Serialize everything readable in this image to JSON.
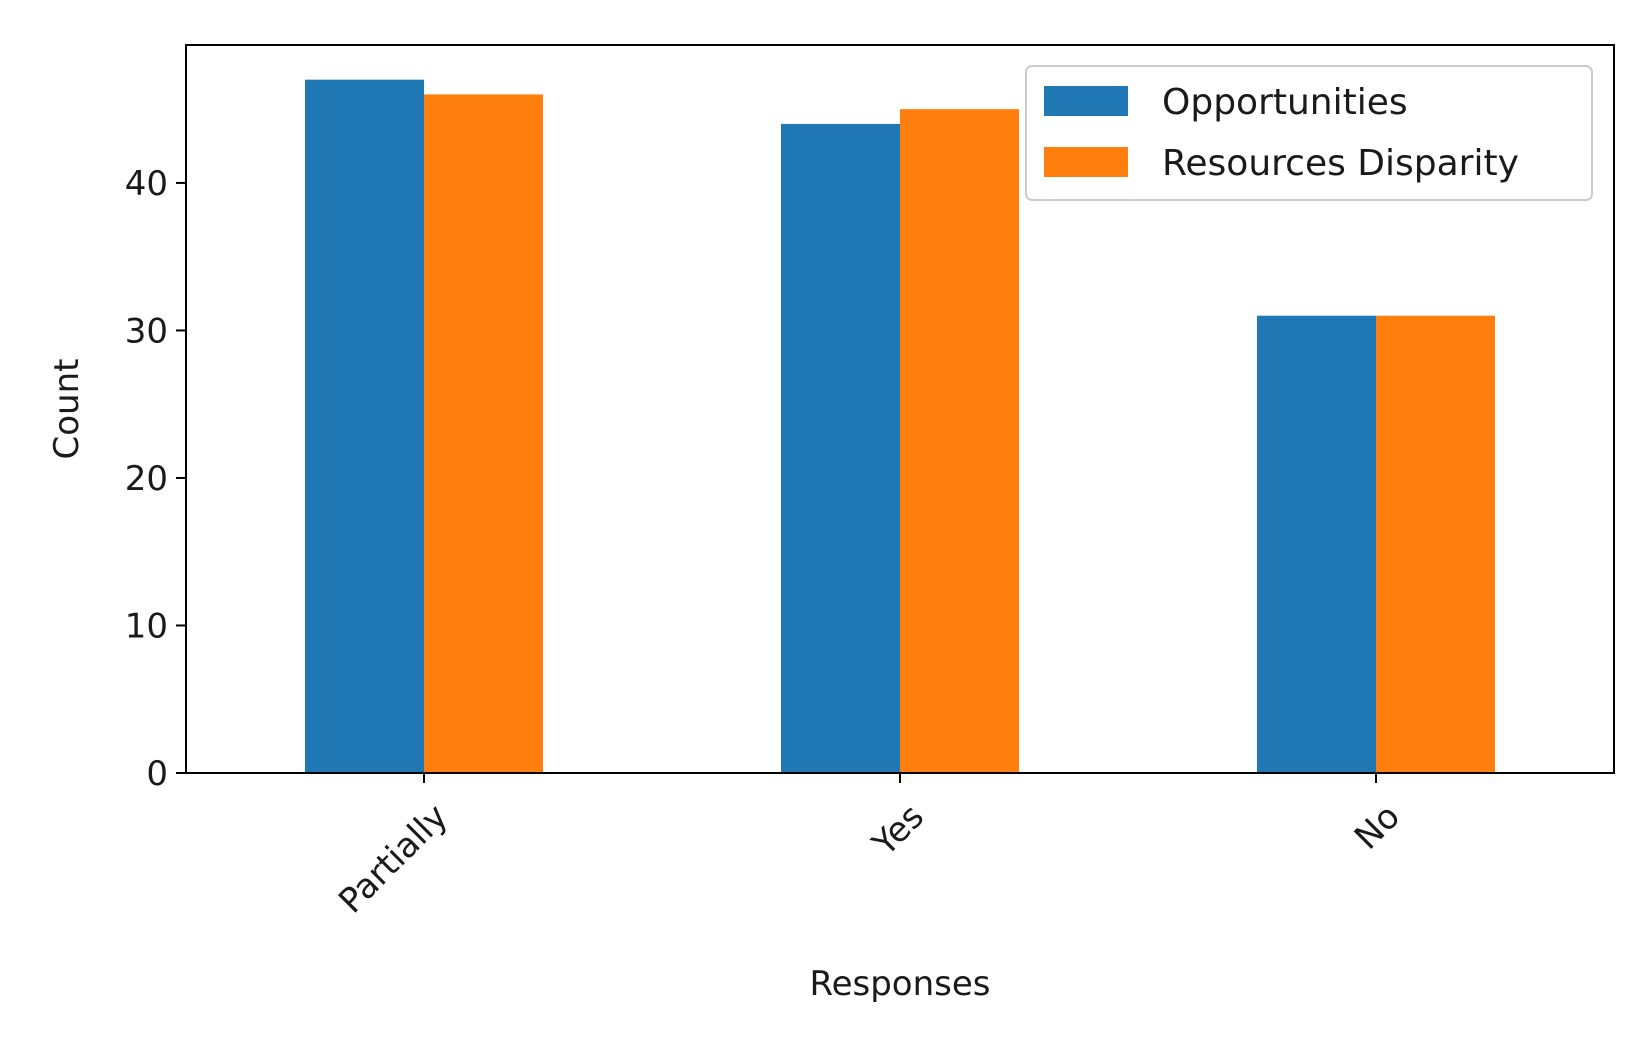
{
  "chart_data": {
    "type": "bar",
    "xlabel": "Responses",
    "ylabel": "Count",
    "categories": [
      "Partially",
      "Yes",
      "No"
    ],
    "series": [
      {
        "name": "Opportunities",
        "values": [
          47,
          44,
          31
        ],
        "color": "#1f77b4"
      },
      {
        "name": "Resources Disparity",
        "values": [
          46,
          45,
          31
        ],
        "color": "#ff7f0e"
      }
    ],
    "ylim": [
      0,
      49.35
    ],
    "yticks": [
      0,
      10,
      20,
      30,
      40
    ],
    "grid": false,
    "legend_position": "top-right"
  }
}
